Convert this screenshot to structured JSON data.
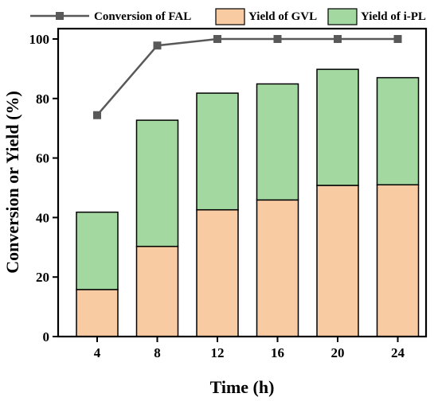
{
  "chart_data": {
    "type": "bar",
    "stacked": true,
    "categories": [
      "4",
      "8",
      "12",
      "16",
      "20",
      "24"
    ],
    "xlabel": "Time (h)",
    "ylabel": "Conversion or Yield (%)",
    "ylim": [
      0,
      100
    ],
    "yticks": [
      "0",
      "20",
      "40",
      "60",
      "80",
      "100"
    ],
    "grid": false,
    "legend_position": "top",
    "series": [
      {
        "name": "Yield of GVL",
        "kind": "bar",
        "color": "#f9cba2",
        "values": [
          15.8,
          30.3,
          42.6,
          45.9,
          50.8,
          51.0
        ]
      },
      {
        "name": "Yield of i-PL",
        "kind": "bar",
        "color": "#a3d9a0",
        "values": [
          26.0,
          42.4,
          39.2,
          39.0,
          39.0,
          36.0
        ]
      },
      {
        "name": "Conversion of FAL",
        "kind": "line",
        "color": "#595959",
        "marker": "square",
        "values": [
          74.4,
          97.8,
          100,
          100,
          100,
          100
        ]
      }
    ]
  }
}
